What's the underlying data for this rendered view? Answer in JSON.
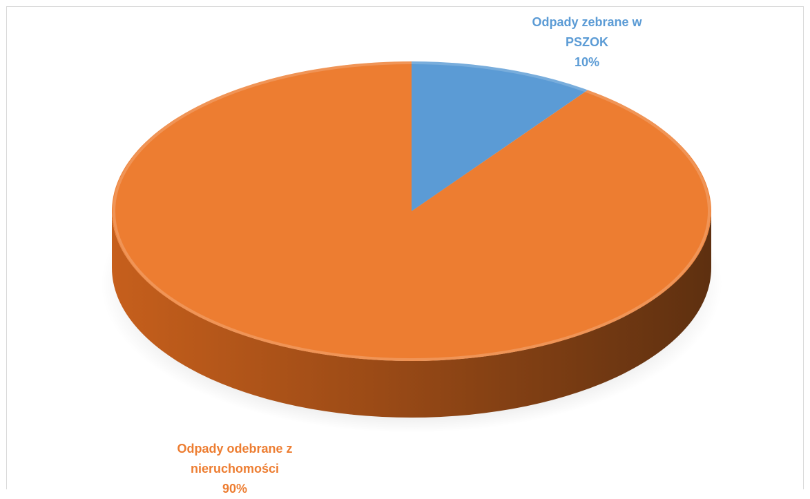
{
  "chart_data": {
    "type": "pie",
    "style": "3d",
    "title": "",
    "slices": [
      {
        "name_lines": [
          "Odpady zebrane w",
          "PSZOK"
        ],
        "value": 10,
        "label": "10%",
        "color": "#5b9bd5"
      },
      {
        "name_lines": [
          "Odpady odebrane z",
          "nieruchomości"
        ],
        "value": 90,
        "label": "90%",
        "color": "#ed7d31"
      }
    ],
    "legend": "none"
  },
  "colors": {
    "background": "#ffffff",
    "border": "#d9d9d9",
    "side_dark": "#5e3010"
  }
}
